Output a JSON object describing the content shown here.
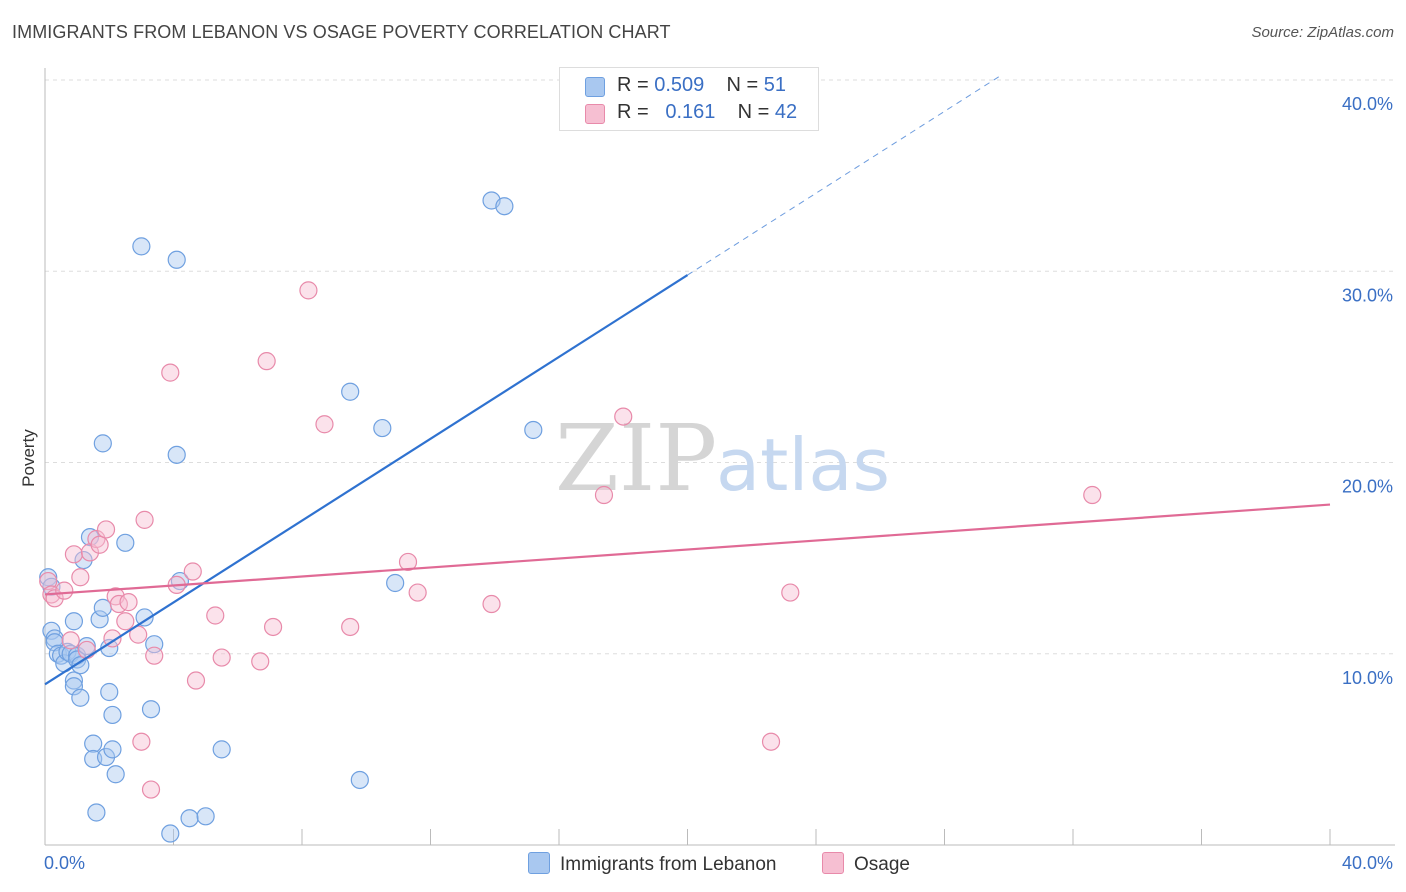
{
  "header": {
    "title": "IMMIGRANTS FROM LEBANON VS OSAGE POVERTY CORRELATION CHART",
    "source": "Source: ZipAtlas.com"
  },
  "legend": {
    "series1": {
      "r_label": "R =",
      "r_value": "0.509",
      "n_label": "N =",
      "n_value": "51"
    },
    "series2": {
      "r_label": "R =",
      "r_value": "0.161",
      "n_label": "N =",
      "n_value": "42"
    }
  },
  "watermark": {
    "zip": "ZIP",
    "atlas": "atlas"
  },
  "colors": {
    "blue_fill": "#a9c8f0",
    "blue_stroke": "#6fa0e0",
    "blue_line": "#2f72d0",
    "pink_fill": "#f6bfd2",
    "pink_stroke": "#e88aaa",
    "pink_line": "#e06a95",
    "grid": "#dddddd",
    "axis_text": "#3a6fc4"
  },
  "chart_data": {
    "type": "scatter",
    "title": "IMMIGRANTS FROM LEBANON VS OSAGE POVERTY CORRELATION CHART",
    "xlabel": "",
    "ylabel": "Poverty",
    "xlim": [
      0,
      40
    ],
    "ylim": [
      0,
      40
    ],
    "x_tick_labels": [
      "0.0%",
      "40.0%"
    ],
    "y_ticks": [
      10,
      20,
      30,
      40
    ],
    "y_tick_labels": [
      "10.0%",
      "20.0%",
      "30.0%",
      "40.0%"
    ],
    "grid": true,
    "series": [
      {
        "name": "Immigrants from Lebanon",
        "r": 0.509,
        "n": 51,
        "points": [
          [
            0.1,
            14.0
          ],
          [
            0.2,
            13.5
          ],
          [
            0.2,
            11.2
          ],
          [
            0.3,
            10.8
          ],
          [
            0.3,
            10.6
          ],
          [
            0.4,
            10.0
          ],
          [
            0.5,
            9.9
          ],
          [
            0.6,
            9.5
          ],
          [
            0.7,
            10.1
          ],
          [
            0.8,
            10.0
          ],
          [
            0.9,
            8.6
          ],
          [
            0.9,
            8.3
          ],
          [
            0.9,
            11.7
          ],
          [
            1.0,
            9.9
          ],
          [
            1.0,
            9.7
          ],
          [
            1.1,
            9.4
          ],
          [
            1.1,
            7.7
          ],
          [
            1.2,
            14.9
          ],
          [
            1.3,
            10.4
          ],
          [
            1.4,
            16.1
          ],
          [
            1.5,
            5.3
          ],
          [
            1.5,
            4.5
          ],
          [
            1.6,
            1.7
          ],
          [
            1.7,
            11.8
          ],
          [
            1.8,
            12.4
          ],
          [
            1.8,
            21.0
          ],
          [
            1.9,
            4.6
          ],
          [
            2.0,
            10.3
          ],
          [
            2.0,
            8.0
          ],
          [
            2.1,
            6.8
          ],
          [
            2.1,
            5.0
          ],
          [
            2.2,
            3.7
          ],
          [
            2.5,
            15.8
          ],
          [
            3.0,
            31.3
          ],
          [
            3.1,
            11.9
          ],
          [
            3.3,
            7.1
          ],
          [
            3.4,
            10.5
          ],
          [
            3.9,
            0.6
          ],
          [
            4.1,
            30.6
          ],
          [
            4.1,
            20.4
          ],
          [
            4.2,
            13.8
          ],
          [
            4.5,
            1.4
          ],
          [
            5.0,
            1.5
          ],
          [
            5.5,
            5.0
          ],
          [
            9.5,
            23.7
          ],
          [
            9.8,
            3.4
          ],
          [
            10.5,
            21.8
          ],
          [
            10.9,
            13.7
          ],
          [
            13.9,
            33.7
          ],
          [
            14.3,
            33.4
          ],
          [
            15.2,
            21.7
          ]
        ]
      },
      {
        "name": "Osage",
        "r": 0.161,
        "n": 42,
        "points": [
          [
            0.1,
            13.8
          ],
          [
            0.2,
            13.1
          ],
          [
            0.3,
            12.9
          ],
          [
            0.6,
            13.3
          ],
          [
            0.8,
            10.7
          ],
          [
            0.9,
            15.2
          ],
          [
            1.1,
            14.0
          ],
          [
            1.3,
            10.2
          ],
          [
            1.4,
            15.3
          ],
          [
            1.6,
            16.0
          ],
          [
            1.7,
            15.7
          ],
          [
            1.9,
            16.5
          ],
          [
            2.1,
            10.8
          ],
          [
            2.2,
            13.0
          ],
          [
            2.3,
            12.6
          ],
          [
            2.5,
            11.7
          ],
          [
            2.6,
            12.7
          ],
          [
            2.9,
            11.0
          ],
          [
            3.0,
            5.4
          ],
          [
            3.1,
            17.0
          ],
          [
            3.3,
            2.9
          ],
          [
            3.4,
            9.9
          ],
          [
            3.9,
            24.7
          ],
          [
            4.1,
            13.6
          ],
          [
            4.6,
            14.3
          ],
          [
            4.7,
            8.6
          ],
          [
            5.3,
            12.0
          ],
          [
            5.5,
            9.8
          ],
          [
            6.7,
            9.6
          ],
          [
            6.9,
            25.3
          ],
          [
            7.1,
            11.4
          ],
          [
            8.2,
            29.0
          ],
          [
            8.7,
            22.0
          ],
          [
            9.5,
            11.4
          ],
          [
            11.3,
            14.8
          ],
          [
            11.6,
            13.2
          ],
          [
            13.9,
            12.6
          ],
          [
            17.4,
            18.3
          ],
          [
            18.0,
            22.4
          ],
          [
            22.6,
            5.4
          ],
          [
            23.2,
            13.2
          ],
          [
            32.6,
            18.3
          ]
        ]
      }
    ],
    "trendlines": [
      {
        "series": "Immigrants from Lebanon",
        "x_start": 0,
        "y_start": 8.4,
        "x_end": 20.0,
        "y_end": 29.8,
        "dashed_to_x": 29.8
      },
      {
        "series": "Osage",
        "x_start": 0,
        "y_start": 13.1,
        "x_end": 40.0,
        "y_end": 17.8
      }
    ]
  },
  "axis": {
    "y_title": "Poverty",
    "x_min_label": "0.0%",
    "x_max_label": "40.0%"
  },
  "bottom_legend": {
    "item1": "Immigrants from Lebanon",
    "item2": "Osage"
  }
}
